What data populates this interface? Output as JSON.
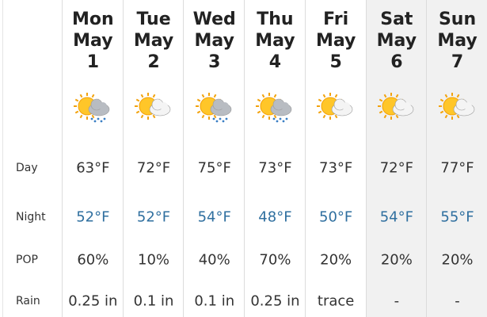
{
  "columns": [
    {
      "day": "Mon",
      "month": "May",
      "date": "1"
    },
    {
      "day": "Tue",
      "month": "May",
      "date": "2"
    },
    {
      "day": "Wed",
      "month": "May",
      "date": "3"
    },
    {
      "day": "Thu",
      "month": "May",
      "date": "4"
    },
    {
      "day": "Fri",
      "month": "May",
      "date": "5"
    },
    {
      "day": "Sat",
      "month": "May",
      "date": "6"
    },
    {
      "day": "Sun",
      "month": "May",
      "date": "7"
    }
  ],
  "row_labels": {
    "day": "Day",
    "night": "Night",
    "pop": "POP",
    "rain": "Rain"
  },
  "rows": {
    "day": [
      "63°F",
      "72°F",
      "75°F",
      "73°F",
      "73°F",
      "72°F",
      "77°F"
    ],
    "night": [
      "52°F",
      "52°F",
      "54°F",
      "48°F",
      "50°F",
      "54°F",
      "55°F"
    ],
    "pop": [
      "60%",
      "10%",
      "40%",
      "70%",
      "20%",
      "20%",
      "20%"
    ],
    "rain": [
      "0.25 in",
      "0.1 in",
      "0.1 in",
      "0.25 in",
      "trace",
      "-",
      "-"
    ]
  }
}
